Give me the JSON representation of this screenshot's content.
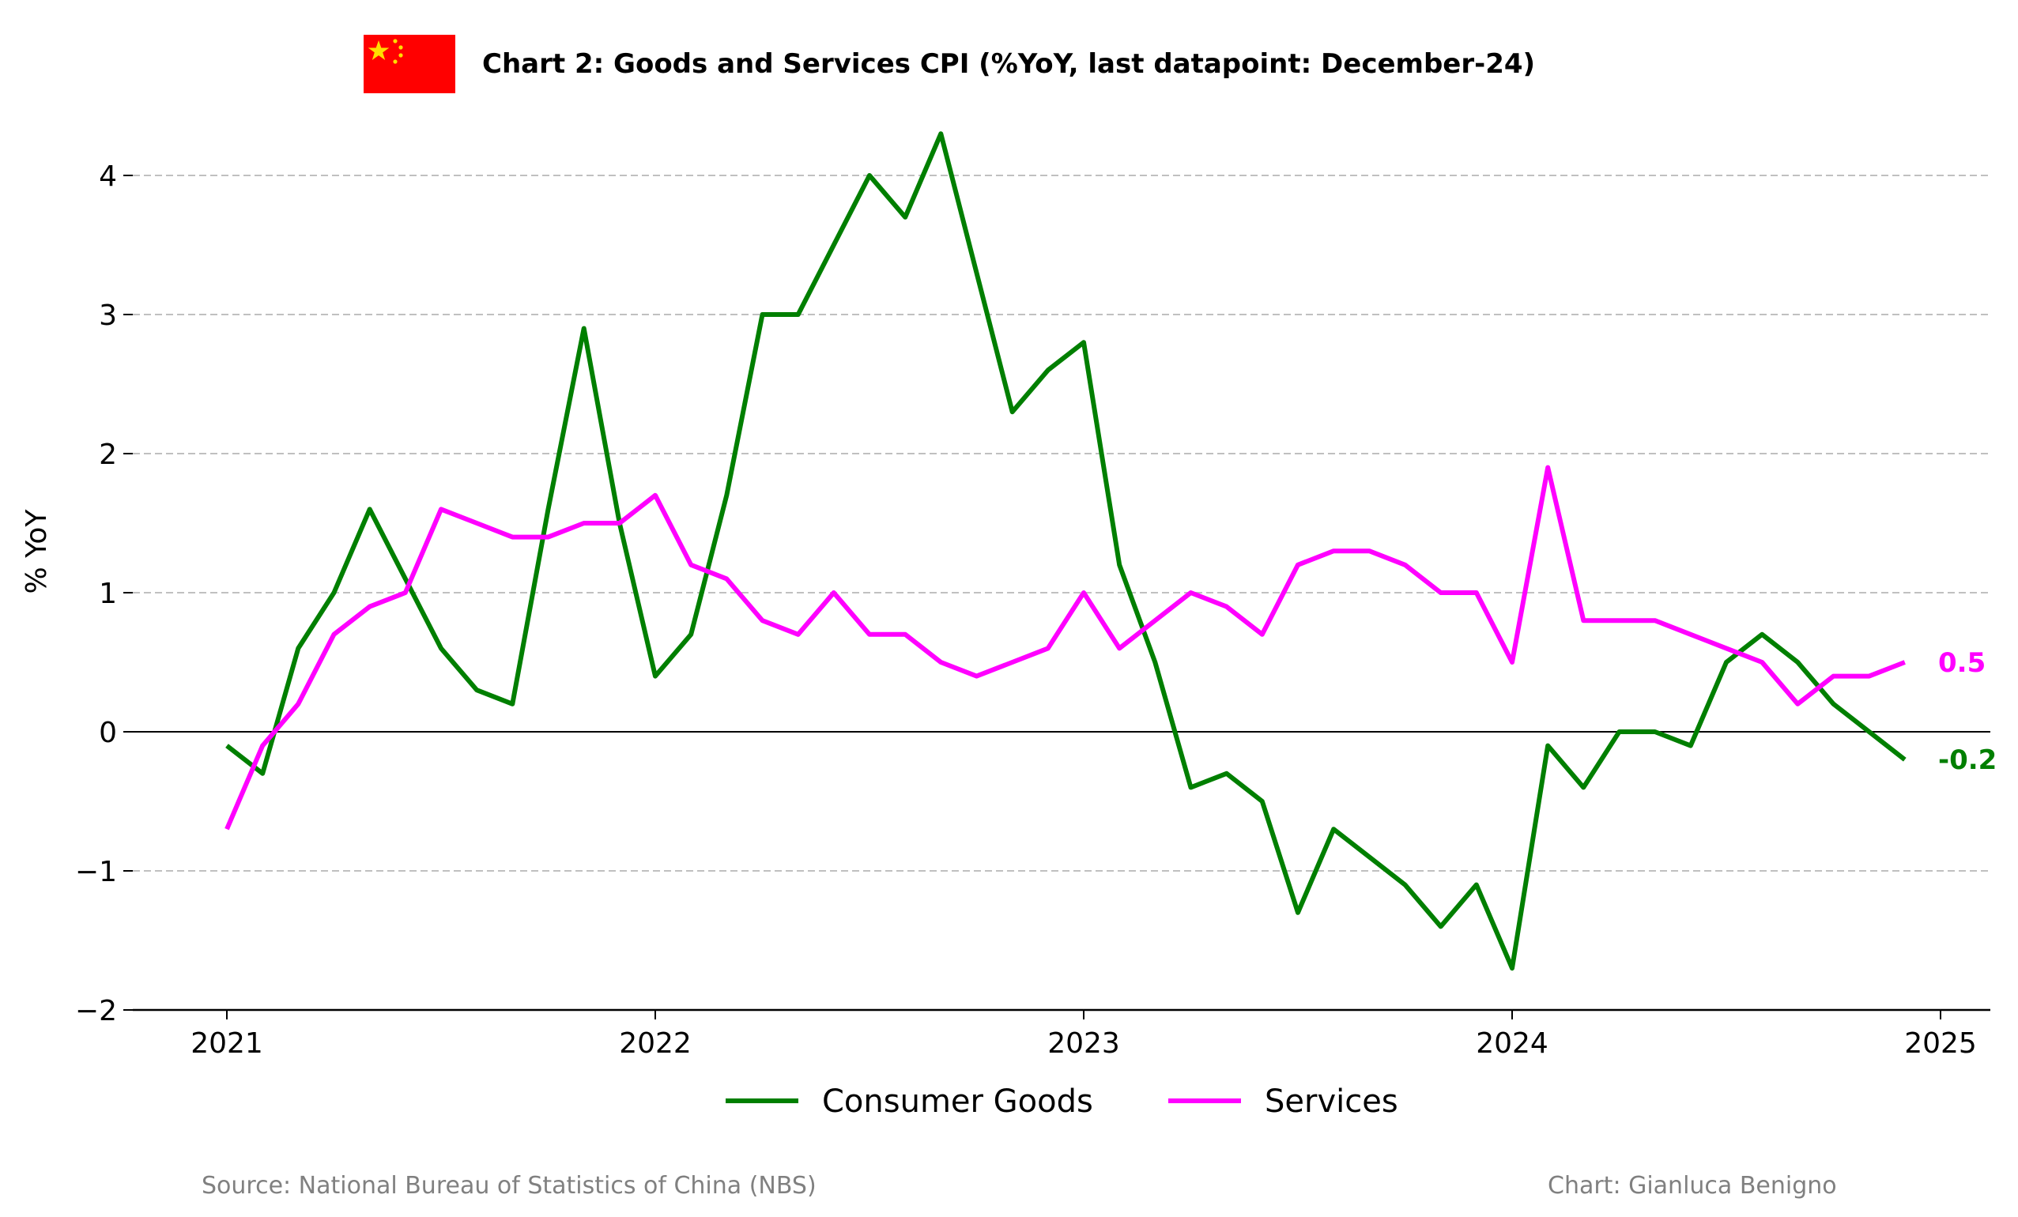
{
  "chart_data": {
    "type": "line",
    "title": "Chart 2: Goods and Services CPI (%YoY, last datapoint: December-24)",
    "xlabel": "",
    "ylabel": "% YoY",
    "x": [
      "2021-01",
      "2021-02",
      "2021-03",
      "2021-04",
      "2021-05",
      "2021-06",
      "2021-07",
      "2021-08",
      "2021-09",
      "2021-10",
      "2021-11",
      "2021-12",
      "2022-01",
      "2022-02",
      "2022-03",
      "2022-04",
      "2022-05",
      "2022-06",
      "2022-07",
      "2022-08",
      "2022-09",
      "2022-10",
      "2022-11",
      "2022-12",
      "2023-01",
      "2023-02",
      "2023-03",
      "2023-04",
      "2023-05",
      "2023-06",
      "2023-07",
      "2023-08",
      "2023-09",
      "2023-10",
      "2023-11",
      "2023-12",
      "2024-01",
      "2024-02",
      "2024-03",
      "2024-04",
      "2024-05",
      "2024-06",
      "2024-07",
      "2024-08",
      "2024-09",
      "2024-10",
      "2024-11",
      "2024-12"
    ],
    "x_ticks": [
      "2021",
      "2022",
      "2023",
      "2024",
      "2025"
    ],
    "y_ticks": [
      "4",
      "3",
      "2",
      "1",
      "0",
      "−1",
      "−2"
    ],
    "ylim": [
      -2,
      4.4
    ],
    "grid": "horizontal dashed",
    "legend": "bottom-center",
    "series": [
      {
        "name": "Consumer Goods",
        "color": "#007f00",
        "values": [
          -0.1,
          -0.3,
          0.6,
          1.0,
          1.6,
          1.1,
          0.6,
          0.3,
          0.2,
          1.6,
          2.9,
          1.5,
          0.4,
          0.7,
          1.7,
          3.0,
          3.0,
          3.5,
          4.0,
          3.7,
          4.3,
          3.3,
          2.3,
          2.6,
          2.8,
          1.2,
          0.5,
          -0.4,
          -0.3,
          -0.5,
          -1.3,
          -0.7,
          -0.9,
          -1.1,
          -1.4,
          -1.1,
          -1.7,
          -0.1,
          -0.4,
          0.0,
          0.0,
          -0.1,
          0.5,
          0.7,
          0.5,
          0.2,
          0.0,
          -0.2
        ],
        "end_label": "-0.2"
      },
      {
        "name": "Services",
        "color": "#ff00ff",
        "values": [
          -0.7,
          -0.1,
          0.2,
          0.7,
          0.9,
          1.0,
          1.6,
          1.5,
          1.4,
          1.4,
          1.5,
          1.5,
          1.7,
          1.2,
          1.1,
          0.8,
          0.7,
          1.0,
          0.7,
          0.7,
          0.5,
          0.4,
          0.5,
          0.6,
          1.0,
          0.6,
          0.8,
          1.0,
          0.9,
          0.7,
          1.2,
          1.3,
          1.3,
          1.2,
          1.0,
          1.0,
          0.5,
          1.9,
          0.8,
          0.8,
          0.8,
          0.7,
          0.6,
          0.5,
          0.2,
          0.4,
          0.4,
          0.5
        ],
        "end_label": "0.5"
      }
    ]
  },
  "flag": {
    "background": "#ff0000",
    "stars": "#ffde00",
    "icon": "china-flag-icon"
  },
  "footer": {
    "source": "Source: National Bureau of Statistics of China (NBS)",
    "credit": "Chart: Gianluca Benigno"
  }
}
